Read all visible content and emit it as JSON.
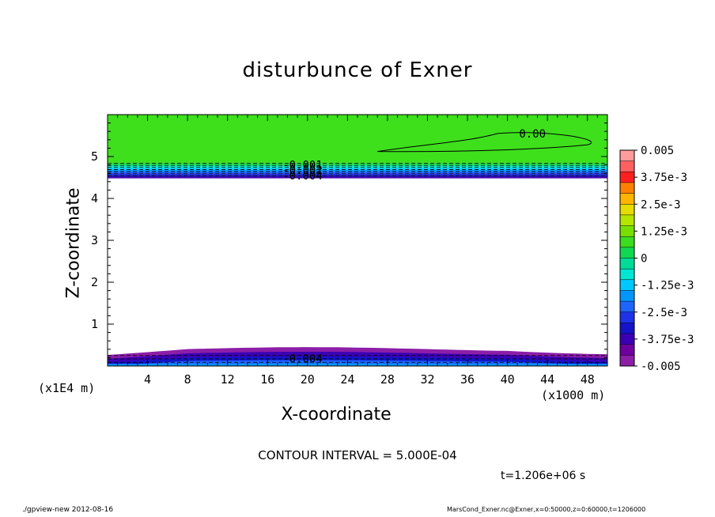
{
  "chart_data": {
    "type": "heatmap",
    "title": "disturbunce of Exner",
    "xlabel": "X-coordinate",
    "ylabel": "Z-coordinate",
    "x_unit_left": "(x1E4 m)",
    "x_unit_right": "(x1000 m)",
    "xlim": [
      0,
      50
    ],
    "ylim": [
      0,
      6
    ],
    "x_ticks": [
      4,
      8,
      12,
      16,
      20,
      24,
      28,
      32,
      36,
      40,
      44,
      48
    ],
    "y_ticks": [
      1,
      2,
      3,
      4,
      5
    ],
    "colorbar": {
      "range": [
        -0.005,
        0.005
      ],
      "labels": [
        "0.005",
        "3.75e-3",
        "2.5e-3",
        "1.25e-3",
        "0",
        "-1.25e-3",
        "-2.5e-3",
        "-3.75e-3",
        "-0.005"
      ],
      "colors": [
        "#ff9b9b",
        "#ff6060",
        "#ff2020",
        "#ff8000",
        "#ffb400",
        "#e6dc00",
        "#b4e600",
        "#78e000",
        "#3cdc1e",
        "#10d850",
        "#00dc96",
        "#00e6d2",
        "#00c8ff",
        "#0096ff",
        "#1e64ff",
        "#1e32e6",
        "#1414c8",
        "#3c00b4",
        "#6e00a0",
        "#8c1ea8"
      ]
    },
    "regions": [
      {
        "name": "upper layer",
        "z_range": [
          4.5,
          6.0
        ],
        "level": "0 to -5.0e-4 (near zero, green)"
      },
      {
        "name": "upper gradient band",
        "z_range": [
          4.5,
          4.85
        ],
        "level": "-1.25e-3 to -0.005"
      },
      {
        "name": "lower band",
        "z_range": [
          0.0,
          0.45
        ],
        "level": "-0.005 (purple/blue)"
      }
    ],
    "contour_labels": [
      "0.00",
      "-0.001",
      "-0.002",
      "-0.004",
      "-0.004"
    ],
    "contour_interval_text": "CONTOUR INTERVAL = 5.000E-04",
    "time_text": "t=1.206e+06 s",
    "footer_left": "./gpview-new   2012-08-16",
    "footer_right": "MarsCond_Exner.nc@Exner,x=0:50000,z=0:60000,t=1206000"
  }
}
